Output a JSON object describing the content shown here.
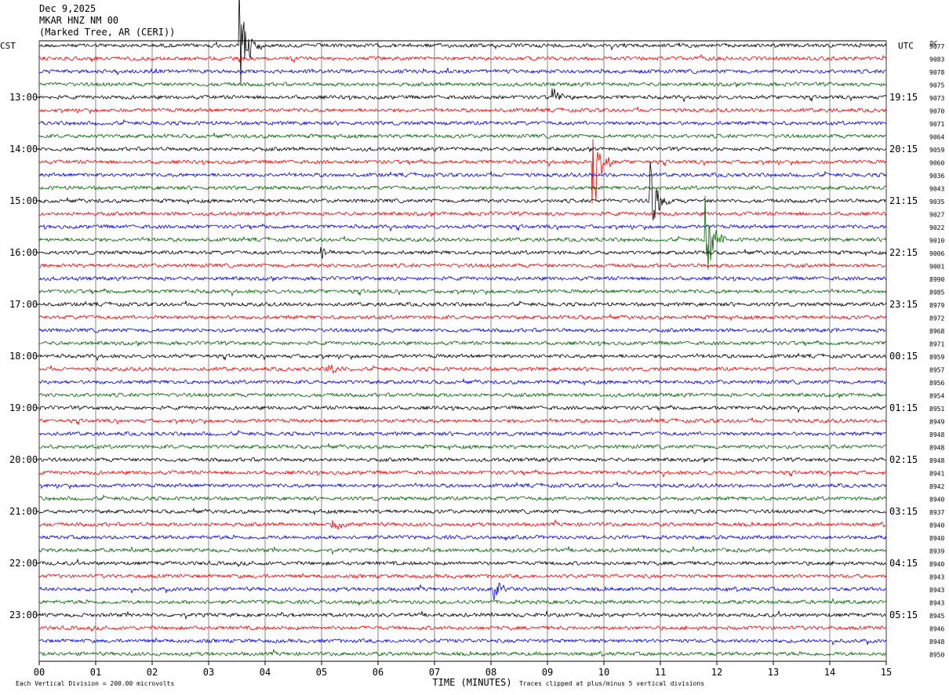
{
  "header": {
    "date": "Dec 9,2025",
    "station": "MKAR HNZ NM 00",
    "location": "(Marked Tree, AR (CERI))"
  },
  "chart_data": {
    "type": "line",
    "xlabel": "TIME (MINUTES)",
    "xlim": [
      0,
      15
    ],
    "x_ticks": [
      "00",
      "01",
      "02",
      "03",
      "04",
      "05",
      "06",
      "07",
      "08",
      "09",
      "10",
      "11",
      "12",
      "13",
      "14",
      "15"
    ],
    "left_axis_label": "CST",
    "right_axis_label": "UTC",
    "dc_label": "DC",
    "left_hour_labels": [
      "13:00",
      "14:00",
      "15:00",
      "16:00",
      "17:00",
      "18:00",
      "19:00",
      "20:00",
      "21:00",
      "22:00",
      "23:00"
    ],
    "right_hour_labels": [
      "19:15",
      "20:15",
      "21:15",
      "22:15",
      "23:15",
      "00:15",
      "01:15",
      "02:15",
      "03:15",
      "04:15",
      "05:15"
    ],
    "trace_colors": [
      "#000000",
      "#ee0000",
      "#0000dd",
      "#006400"
    ],
    "dc_offsets": [
      "9077",
      "9083",
      "9078",
      "9075",
      "9073",
      "9070",
      "9071",
      "9064",
      "9059",
      "9060",
      "9036",
      "9043",
      "9035",
      "9027",
      "9022",
      "9010",
      "9006",
      "9001",
      "8990",
      "8985",
      "8979",
      "8972",
      "8968",
      "8971",
      "8959",
      "8957",
      "8956",
      "8954",
      "8951",
      "8949",
      "8948",
      "8948",
      "8948",
      "8941",
      "8942",
      "8940",
      "8937",
      "8940",
      "8940",
      "8939",
      "8940",
      "8943",
      "8943",
      "8943",
      "8945",
      "8946",
      "8948",
      "8950"
    ],
    "events": [
      {
        "trace": 0,
        "minute": 3.55,
        "amp": 5
      },
      {
        "trace": 9,
        "minute": 9.8,
        "amp": 4.5
      },
      {
        "trace": 12,
        "minute": 10.8,
        "amp": 3.8
      },
      {
        "trace": 15,
        "minute": 11.8,
        "amp": 4
      },
      {
        "trace": 4,
        "minute": 9.1,
        "amp": 0.7
      },
      {
        "trace": 16,
        "minute": 5.0,
        "amp": 0.6
      },
      {
        "trace": 25,
        "minute": 5.1,
        "amp": 0.6
      },
      {
        "trace": 37,
        "minute": 5.2,
        "amp": 0.7
      },
      {
        "trace": 42,
        "minute": 8.05,
        "amp": 0.9
      }
    ],
    "footer_left": "Each Vertical Division = 200.00 microvolts",
    "footer_right": "Traces clipped at plus/minus 5 vertical divisions"
  }
}
